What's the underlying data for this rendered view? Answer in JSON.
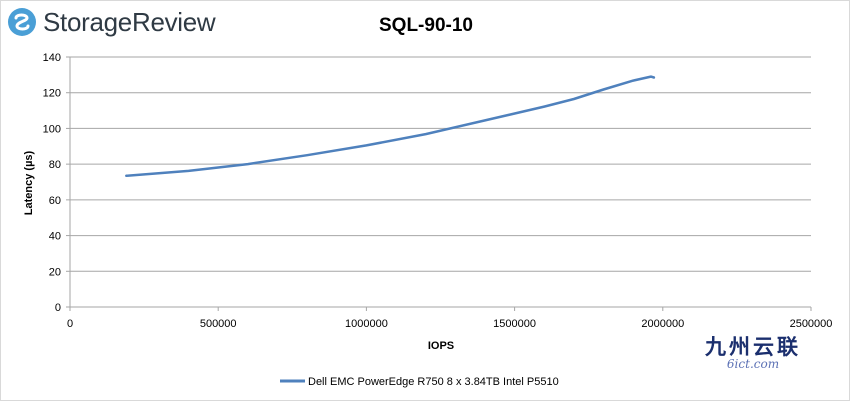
{
  "logo": {
    "text": "StorageReview",
    "icon": "storagereview-logo-icon"
  },
  "watermark": {
    "text": "九州云联",
    "url": "6ict.com"
  },
  "chart_data": {
    "type": "line",
    "title": "SQL-90-10",
    "xlabel": "IOPS",
    "ylabel": "Latency (µs)",
    "xlim": [
      0,
      2500000
    ],
    "ylim": [
      0,
      140
    ],
    "x_ticks": [
      "0",
      "500000",
      "1000000",
      "1500000",
      "2000000",
      "2500000"
    ],
    "y_ticks": [
      "0",
      "20",
      "40",
      "60",
      "80",
      "100",
      "120",
      "140"
    ],
    "grid": "horizontal",
    "legend_position": "bottom",
    "series": [
      {
        "name": "Dell EMC PowerEdge R750 8 x 3.84TB Intel P5510",
        "color": "#4f81bd",
        "x": [
          190000,
          400000,
          600000,
          800000,
          1000000,
          1200000,
          1400000,
          1600000,
          1700000,
          1800000,
          1900000,
          1960000,
          1970000
        ],
        "y": [
          73.5,
          76.2,
          80.0,
          85.0,
          90.5,
          96.8,
          104.5,
          112.2,
          116.5,
          121.8,
          126.8,
          129.0,
          128.5
        ]
      }
    ]
  }
}
